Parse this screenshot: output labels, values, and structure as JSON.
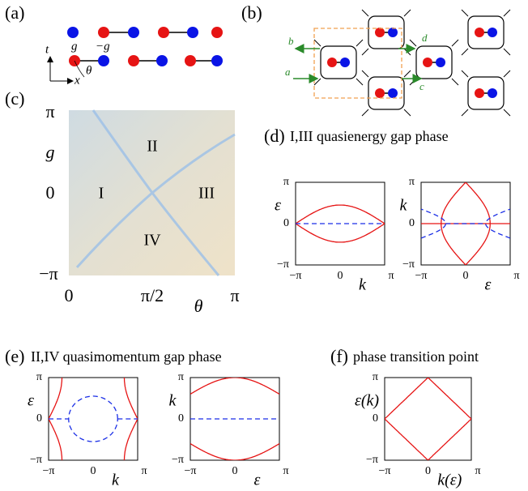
{
  "panels": {
    "a": {
      "label": "(a)",
      "coupling": "g",
      "neg_coupling": "−g",
      "time_axis": "t",
      "space_axis": "x",
      "angle": "θ"
    },
    "b": {
      "label": "(b)",
      "ports": [
        "b",
        "d",
        "a",
        "c"
      ]
    },
    "c": {
      "label": "(c)",
      "regions": [
        "I",
        "II",
        "III",
        "IV"
      ],
      "yticks": [
        "π",
        "0",
        "−π"
      ],
      "xticks": [
        "0",
        "π/2",
        "π"
      ],
      "ylabel": "g",
      "xlabel": "θ"
    },
    "d": {
      "label": "(d)",
      "title": "I,III quasienergy gap phase",
      "plots": [
        {
          "ylabel": "ε",
          "xlabel": "k",
          "yticks": [
            "π",
            "0",
            "−π"
          ],
          "xticks": [
            "−π",
            "0",
            "π"
          ]
        },
        {
          "ylabel": "k",
          "xlabel": "ε",
          "yticks": [
            "π",
            "0",
            "−π"
          ],
          "xticks": [
            "−π",
            "0",
            "π"
          ]
        }
      ]
    },
    "e": {
      "label": "(e)",
      "title": "II,IV quasimomentum gap phase",
      "plots": [
        {
          "ylabel": "ε",
          "xlabel": "k",
          "yticks": [
            "π",
            "0",
            "−π"
          ],
          "xticks": [
            "−π",
            "0",
            "π"
          ]
        },
        {
          "ylabel": "k",
          "xlabel": "ε",
          "yticks": [
            "π",
            "0",
            "−π"
          ],
          "xticks": [
            "−π",
            "0",
            "π"
          ]
        }
      ]
    },
    "f": {
      "label": "(f)",
      "title": "phase transition point",
      "plots": [
        {
          "ylabel": "ε(k)",
          "xlabel": "k(ε)",
          "yticks": [
            "π",
            "0",
            "−π"
          ],
          "xticks": [
            "−π",
            "0",
            "π"
          ]
        }
      ]
    }
  }
}
